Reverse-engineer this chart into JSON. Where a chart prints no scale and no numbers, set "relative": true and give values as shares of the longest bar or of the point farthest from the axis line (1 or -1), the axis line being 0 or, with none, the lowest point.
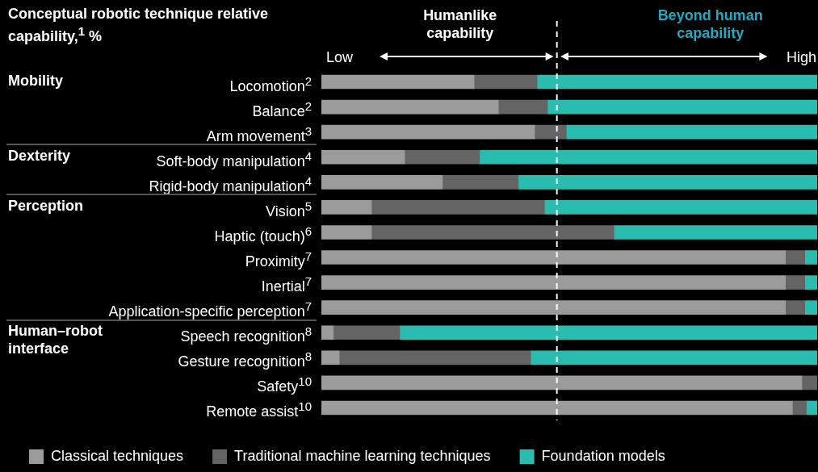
{
  "chart_data": {
    "type": "bar",
    "orientation": "horizontal",
    "stacked": true,
    "relative": true,
    "title": "Conceptual robotic technique relative capability,$^{1}$ %",
    "categories": [
      "Locomotion$^{2}$",
      "Balance$^{2}$",
      "Arm movement$^{3}$",
      "Soft-body manipulation$^{4}$",
      "Rigid-body manipulation$^{4}$",
      "Vision$^{5}$",
      "Haptic (touch)$^{6}$",
      "Proximity$^{7}$",
      "Inertial$^{7}$",
      "Application-specific perception$^{7}$",
      "Speech recognition$^{8}$",
      "Gesture recognition$^{8}$",
      "Safety$^{10}$",
      "Remote assist$^{10}$"
    ],
    "series": [
      {
        "name": "Classical techniques",
        "color": "#9b9b9b",
        "values": [
          0.308,
          0.357,
          0.43,
          0.168,
          0.244,
          0.101,
          0.101,
          0.936,
          0.936,
          0.936,
          0.024,
          0.036,
          0.969,
          0.95
        ]
      },
      {
        "name": "Traditional machine learning techniques",
        "color": "#646464",
        "values": [
          0.127,
          0.099,
          0.064,
          0.151,
          0.153,
          0.349,
          0.489,
          0.039,
          0.039,
          0.039,
          0.134,
          0.386,
          0.031,
          0.028
        ]
      },
      {
        "name": "Foundation models",
        "color": "#2bbcb0",
        "values": [
          0.565,
          0.544,
          0.506,
          0.681,
          0.603,
          0.55,
          0.41,
          0.025,
          0.025,
          0.025,
          0.842,
          0.578,
          0,
          0.022
        ]
      }
    ],
    "ref_lines": [
      {
        "axis": "x",
        "value": 0.475,
        "color": "#ffffff",
        "line_style": "dashed"
      }
    ],
    "annotations": [
      "Humanlike capability",
      "Beyond human capability",
      "Low",
      "High",
      "Mobility",
      "Dexterity",
      "Perception",
      "Human–robot interface"
    ],
    "legend": "bottom"
  }
}
